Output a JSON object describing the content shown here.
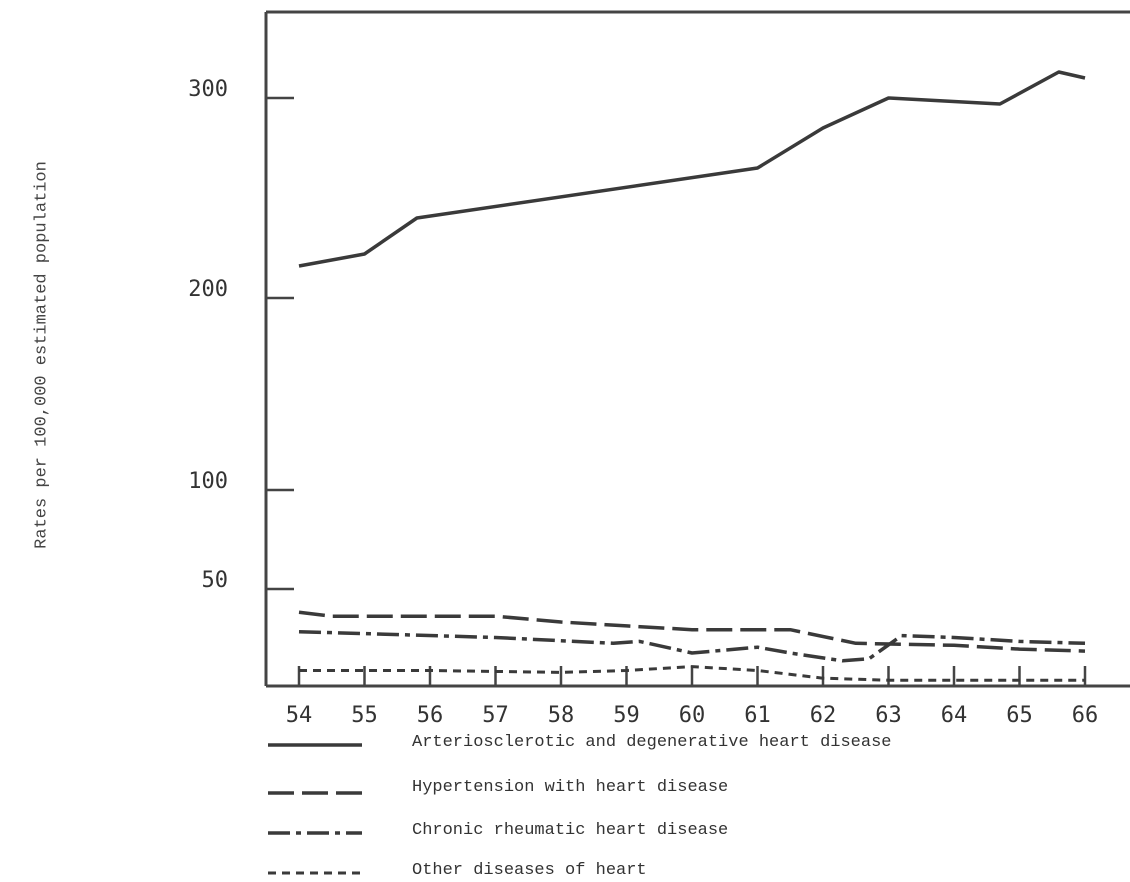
{
  "chart_data": {
    "type": "line",
    "title": "",
    "xlabel": "",
    "ylabel": "Rates per 100,000 estimated population",
    "x": [
      "54",
      "55",
      "56",
      "57",
      "58",
      "59",
      "60",
      "61",
      "62",
      "63",
      "64",
      "65",
      "66"
    ],
    "yticks": [
      "300",
      "200",
      "100",
      "50"
    ],
    "series": [
      {
        "name": "Arteriosclerotic and degenerative heart disease",
        "style": "solid",
        "points": [
          [
            54,
            216
          ],
          [
            55,
            222
          ],
          [
            55.8,
            240
          ],
          [
            61,
            265
          ],
          [
            62,
            285
          ],
          [
            63,
            300
          ],
          [
            64.7,
            297
          ],
          [
            65.6,
            313
          ],
          [
            66,
            310
          ]
        ]
      },
      {
        "name": "Hypertension with heart disease",
        "style": "long-dash",
        "points": [
          [
            54,
            38
          ],
          [
            54.5,
            36
          ],
          [
            55.8,
            36
          ],
          [
            57,
            36
          ],
          [
            58,
            33
          ],
          [
            59,
            31
          ],
          [
            60,
            29
          ],
          [
            61,
            29
          ],
          [
            61.5,
            29
          ],
          [
            62.5,
            22
          ],
          [
            64,
            21
          ],
          [
            65,
            19
          ],
          [
            66,
            18
          ]
        ]
      },
      {
        "name": "Chronic rheumatic heart disease",
        "style": "dash-dot",
        "points": [
          [
            54,
            28
          ],
          [
            55,
            27
          ],
          [
            57,
            25
          ],
          [
            58.8,
            22
          ],
          [
            59.2,
            23
          ],
          [
            60,
            17
          ],
          [
            61,
            20
          ],
          [
            61.5,
            17
          ],
          [
            62.3,
            13
          ],
          [
            62.7,
            14
          ],
          [
            63.2,
            26
          ],
          [
            64,
            25
          ],
          [
            65,
            23
          ],
          [
            66,
            22
          ]
        ]
      },
      {
        "name": "Other diseases of heart",
        "style": "dotted",
        "points": [
          [
            54,
            8
          ],
          [
            56,
            8
          ],
          [
            58,
            7
          ],
          [
            59,
            8
          ],
          [
            60,
            10
          ],
          [
            61,
            8
          ],
          [
            62,
            4
          ],
          [
            63,
            3
          ],
          [
            66,
            3
          ]
        ]
      }
    ],
    "grid": false,
    "legend_position": "bottom"
  }
}
